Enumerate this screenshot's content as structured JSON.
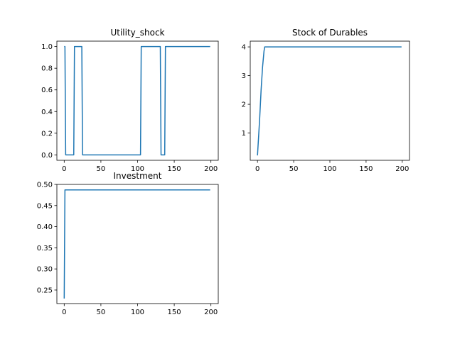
{
  "chart_data": [
    {
      "type": "line",
      "title": "Utility_shock",
      "xlabel": "",
      "ylabel": "",
      "xlim": [
        -10,
        210
      ],
      "ylim": [
        -0.05,
        1.05
      ],
      "xticks": [
        0,
        50,
        100,
        150,
        200
      ],
      "yticks": [
        0.0,
        0.2,
        0.4,
        0.6,
        0.8,
        1.0
      ],
      "xtick_labels": [
        "0",
        "50",
        "100",
        "150",
        "200"
      ],
      "ytick_labels": [
        "0.0",
        "0.2",
        "0.4",
        "0.6",
        "0.8",
        "1.0"
      ],
      "grid": false,
      "series": [
        {
          "color": "#1f77b4",
          "x": [
            0,
            1,
            2,
            3,
            13,
            14,
            24,
            25,
            26,
            104,
            105,
            106,
            131,
            132,
            137,
            138,
            199
          ],
          "y": [
            1,
            1,
            0,
            0,
            0,
            1,
            1,
            0,
            0,
            0,
            1,
            1,
            1,
            0,
            0,
            1,
            1
          ]
        }
      ]
    },
    {
      "type": "line",
      "title": "Stock of Durables",
      "xlabel": "",
      "ylabel": "",
      "xlim": [
        -10,
        210
      ],
      "ylim": [
        0.05,
        4.2
      ],
      "xticks": [
        0,
        50,
        100,
        150,
        200
      ],
      "yticks": [
        1,
        2,
        3,
        4
      ],
      "xtick_labels": [
        "0",
        "50",
        "100",
        "150",
        "200"
      ],
      "ytick_labels": [
        "1",
        "2",
        "3",
        "4"
      ],
      "grid": false,
      "series": [
        {
          "color": "#1f77b4",
          "x": [
            0,
            3,
            5,
            7,
            9,
            10,
            199
          ],
          "y": [
            0.22,
            1.5,
            2.5,
            3.3,
            3.85,
            4.0,
            4.0
          ]
        }
      ]
    },
    {
      "type": "line",
      "title": "Investment",
      "xlabel": "",
      "ylabel": "",
      "xlim": [
        -10,
        210
      ],
      "ylim": [
        0.218,
        0.5
      ],
      "xticks": [
        0,
        50,
        100,
        150,
        200
      ],
      "yticks": [
        0.25,
        0.3,
        0.35,
        0.4,
        0.45,
        0.5
      ],
      "xtick_labels": [
        "0",
        "50",
        "100",
        "150",
        "200"
      ],
      "ytick_labels": [
        "0.25",
        "0.30",
        "0.35",
        "0.40",
        "0.45",
        "0.50"
      ],
      "grid": false,
      "series": [
        {
          "color": "#1f77b4",
          "x": [
            0,
            1,
            199
          ],
          "y": [
            0.23,
            0.487,
            0.487
          ]
        }
      ]
    }
  ]
}
